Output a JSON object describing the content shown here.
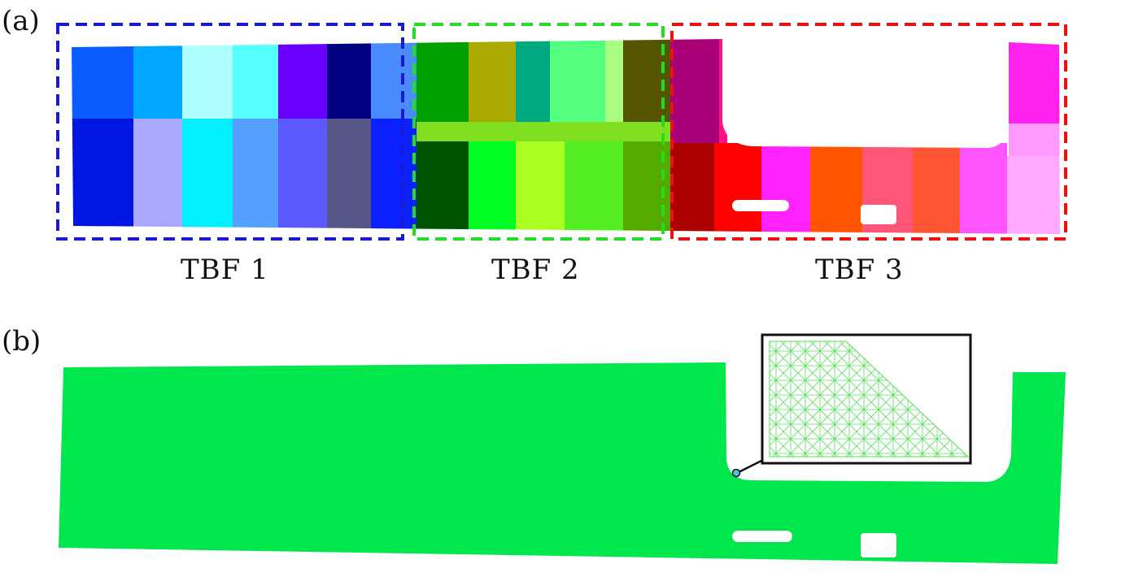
{
  "panels": {
    "a": {
      "label": "(a)"
    },
    "b": {
      "label": "(b)"
    }
  },
  "groups": [
    {
      "caption": "TBF  1",
      "border_color": "#1a1ad6"
    },
    {
      "caption": "TBF  2",
      "border_color": "#22dd22"
    },
    {
      "caption": "TBF  3",
      "border_color": "#ee1111"
    }
  ],
  "colors": {
    "mesh_fill": "#00e64d",
    "inset_mesh": "#55e055",
    "marker": "#4fc3d9"
  }
}
